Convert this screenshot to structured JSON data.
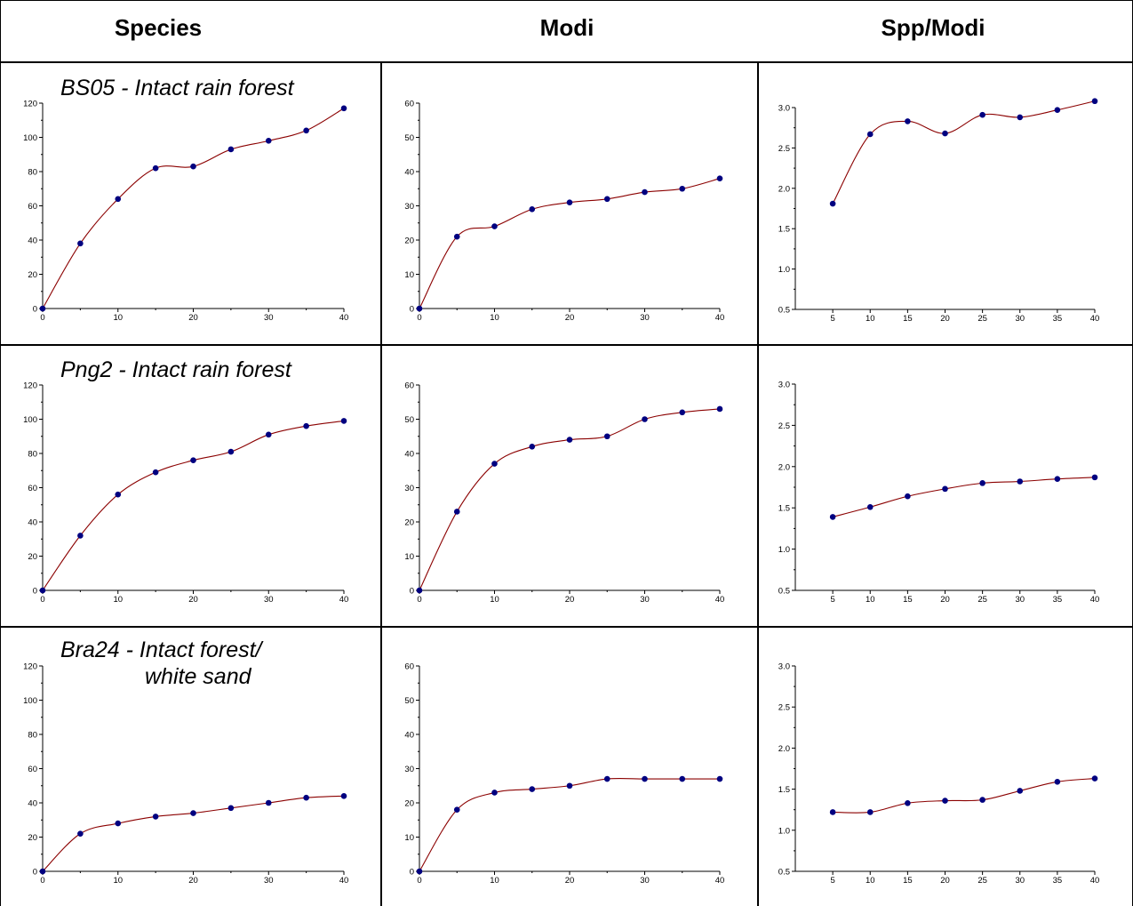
{
  "headers": {
    "species": "Species",
    "modi": "Modi",
    "ratio": "Spp/Modi"
  },
  "site_labels": [
    {
      "line1": "BS05 - Intact rain forest",
      "line2": ""
    },
    {
      "line1": "Png2 - Intact rain forest",
      "line2": ""
    },
    {
      "line1": "Bra24 - Intact forest/",
      "line2": "white sand"
    }
  ],
  "colors": {
    "line": "#8b0000",
    "point": "#000080",
    "border": "#000000"
  },
  "chart_data": [
    {
      "id": "bs05-species",
      "type": "line",
      "x": [
        0,
        5,
        10,
        15,
        20,
        25,
        30,
        35,
        40
      ],
      "y": [
        0,
        38,
        64,
        82,
        83,
        93,
        98,
        104,
        117
      ],
      "xlim": [
        0,
        40
      ],
      "ylim": [
        0,
        120
      ],
      "xticks": [
        0,
        10,
        20,
        30,
        40
      ],
      "yticks": [
        0,
        20,
        40,
        60,
        80,
        100,
        120
      ],
      "ytick_labels": [
        "0",
        "20",
        "40",
        "60",
        "80",
        "100",
        "120"
      ]
    },
    {
      "id": "bs05-modi",
      "type": "line",
      "x": [
        0,
        5,
        10,
        15,
        20,
        25,
        30,
        35,
        40
      ],
      "y": [
        0,
        21,
        24,
        29,
        31,
        32,
        34,
        35,
        38
      ],
      "xlim": [
        0,
        40
      ],
      "ylim": [
        0,
        60
      ],
      "xticks": [
        0,
        10,
        20,
        30,
        40
      ],
      "yticks": [
        0,
        10,
        20,
        30,
        40,
        50,
        60
      ],
      "ytick_labels": [
        "0",
        "10",
        "20",
        "30",
        "40",
        "50",
        "60"
      ]
    },
    {
      "id": "bs05-ratio",
      "type": "line",
      "x": [
        5,
        10,
        15,
        20,
        25,
        30,
        35,
        40
      ],
      "y": [
        1.81,
        2.67,
        2.83,
        2.68,
        2.91,
        2.88,
        2.97,
        3.08
      ],
      "xlim": [
        0,
        40
      ],
      "ylim": [
        0.5,
        3.0
      ],
      "xticks": [
        5,
        10,
        15,
        20,
        25,
        30,
        35,
        40
      ],
      "yticks": [
        0.5,
        1.0,
        1.5,
        2.0,
        2.5,
        3.0
      ],
      "ytick_labels": [
        "0.5",
        "1.0",
        "1.5",
        "2.0",
        "2.5",
        "3.0"
      ]
    },
    {
      "id": "png2-species",
      "type": "line",
      "x": [
        0,
        5,
        10,
        15,
        20,
        25,
        30,
        35,
        40
      ],
      "y": [
        0,
        32,
        56,
        69,
        76,
        81,
        91,
        96,
        99
      ],
      "xlim": [
        0,
        40
      ],
      "ylim": [
        0,
        120
      ],
      "xticks": [
        0,
        10,
        20,
        30,
        40
      ],
      "yticks": [
        0,
        20,
        40,
        60,
        80,
        100,
        120
      ],
      "ytick_labels": [
        "0",
        "20",
        "40",
        "60",
        "80",
        "100",
        "120"
      ]
    },
    {
      "id": "png2-modi",
      "type": "line",
      "x": [
        0,
        5,
        10,
        15,
        20,
        25,
        30,
        35,
        40
      ],
      "y": [
        0,
        23,
        37,
        42,
        44,
        45,
        50,
        52,
        53
      ],
      "xlim": [
        0,
        40
      ],
      "ylim": [
        0,
        60
      ],
      "xticks": [
        0,
        10,
        20,
        30,
        40
      ],
      "yticks": [
        0,
        10,
        20,
        30,
        40,
        50,
        60
      ],
      "ytick_labels": [
        "0",
        "10",
        "20",
        "30",
        "40",
        "50",
        "60"
      ]
    },
    {
      "id": "png2-ratio",
      "type": "line",
      "x": [
        5,
        10,
        15,
        20,
        25,
        30,
        35,
        40
      ],
      "y": [
        1.39,
        1.51,
        1.64,
        1.73,
        1.8,
        1.82,
        1.85,
        1.87
      ],
      "xlim": [
        0,
        40
      ],
      "ylim": [
        0.5,
        3.0
      ],
      "xticks": [
        5,
        10,
        15,
        20,
        25,
        30,
        35,
        40
      ],
      "yticks": [
        0.5,
        1.0,
        1.5,
        2.0,
        2.5,
        3.0
      ],
      "ytick_labels": [
        "0.5",
        "1.0",
        "1.5",
        "2.0",
        "2.5",
        "3.0"
      ]
    },
    {
      "id": "bra24-species",
      "type": "line",
      "x": [
        0,
        5,
        10,
        15,
        20,
        25,
        30,
        35,
        40
      ],
      "y": [
        0,
        22,
        28,
        32,
        34,
        37,
        40,
        43,
        44
      ],
      "xlim": [
        0,
        40
      ],
      "ylim": [
        0,
        120
      ],
      "xticks": [
        0,
        10,
        20,
        30,
        40
      ],
      "yticks": [
        0,
        20,
        40,
        60,
        80,
        100,
        120
      ],
      "ytick_labels": [
        "0",
        "20",
        "40",
        "60",
        "80",
        "100",
        "120"
      ]
    },
    {
      "id": "bra24-modi",
      "type": "line",
      "x": [
        0,
        5,
        10,
        15,
        20,
        25,
        30,
        35,
        40
      ],
      "y": [
        0,
        18,
        23,
        24,
        25,
        27,
        27,
        27,
        27
      ],
      "xlim": [
        0,
        40
      ],
      "ylim": [
        0,
        60
      ],
      "xticks": [
        0,
        10,
        20,
        30,
        40
      ],
      "yticks": [
        0,
        10,
        20,
        30,
        40,
        50,
        60
      ],
      "ytick_labels": [
        "0",
        "10",
        "20",
        "30",
        "40",
        "50",
        "60"
      ]
    },
    {
      "id": "bra24-ratio",
      "type": "line",
      "x": [
        5,
        10,
        15,
        20,
        25,
        30,
        35,
        40
      ],
      "y": [
        1.22,
        1.22,
        1.33,
        1.36,
        1.37,
        1.48,
        1.59,
        1.63
      ],
      "xlim": [
        0,
        40
      ],
      "ylim": [
        0.5,
        3.0
      ],
      "xticks": [
        5,
        10,
        15,
        20,
        25,
        30,
        35,
        40
      ],
      "yticks": [
        0.5,
        1.0,
        1.5,
        2.0,
        2.5,
        3.0
      ],
      "ytick_labels": [
        "0.5",
        "1.0",
        "1.5",
        "2.0",
        "2.5",
        "3.0"
      ]
    }
  ]
}
